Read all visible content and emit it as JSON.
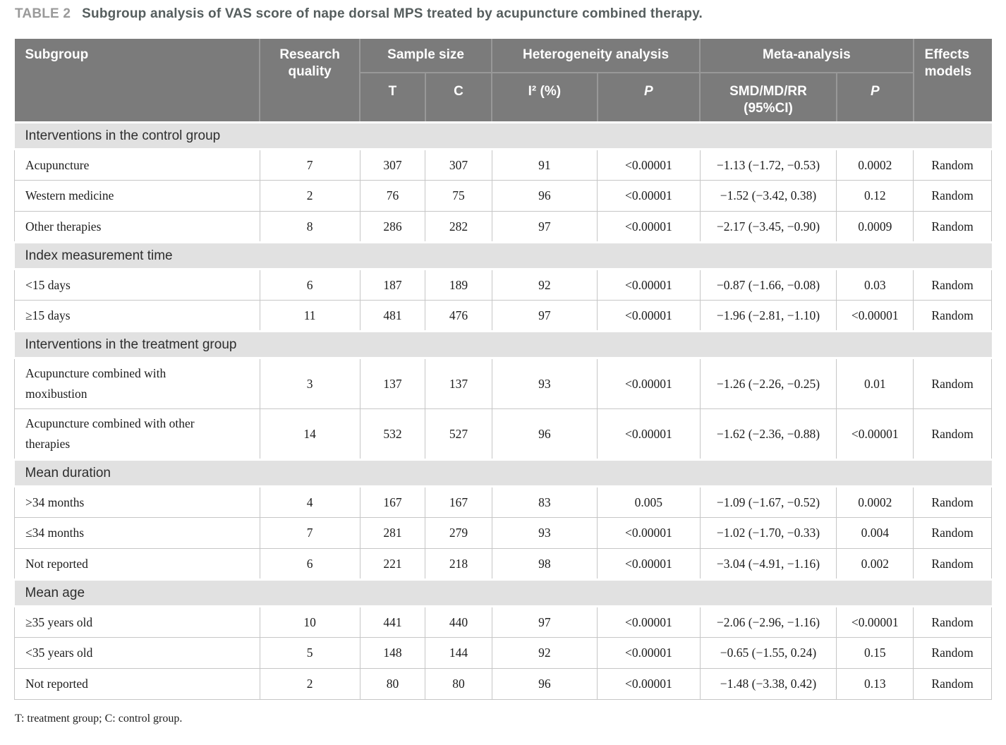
{
  "title": {
    "label": "TABLE 2",
    "caption": "Subgroup analysis of VAS score of nape dorsal MPS treated by acupuncture combined therapy."
  },
  "colors": {
    "header_bg": "#7b7b7b",
    "header_line": "#989898",
    "band_bg": "#e1e1e1",
    "row_line": "#c6c6c6",
    "title_label": "#9a9a9a",
    "title_text": "#565e5e"
  },
  "table": {
    "field_names": [
      "subgroup",
      "research-quality",
      "sample-t",
      "sample-c",
      "i2-percent",
      "heterogeneity-p",
      "smd-md-rr-95ci",
      "meta-p",
      "effects-model"
    ],
    "header": {
      "subgroup": "Subgroup",
      "research_quality": "Research quality",
      "sample_size": "Sample size",
      "t": "T",
      "c": "C",
      "heterogeneity": "Heterogeneity analysis",
      "i2": "I² (%)",
      "p_het": "P",
      "meta": "Meta-analysis",
      "smd": "SMD/MD/RR (95%CI)",
      "p_meta": "P",
      "effects_models": "Effects models"
    },
    "sections": [
      {
        "name": "Interventions in the control group",
        "rows": [
          [
            "Acupuncture",
            "7",
            "307",
            "307",
            "91",
            "<0.00001",
            "−1.13 (−1.72, −0.53)",
            "0.0002",
            "Random"
          ],
          [
            "Western medicine",
            "2",
            "76",
            "75",
            "96",
            "<0.00001",
            "−1.52 (−3.42, 0.38)",
            "0.12",
            "Random"
          ],
          [
            "Other therapies",
            "8",
            "286",
            "282",
            "97",
            "<0.00001",
            "−2.17 (−3.45, −0.90)",
            "0.0009",
            "Random"
          ]
        ]
      },
      {
        "name": "Index measurement time",
        "rows": [
          [
            "<15 days",
            "6",
            "187",
            "189",
            "92",
            "<0.00001",
            "−0.87 (−1.66, −0.08)",
            "0.03",
            "Random"
          ],
          [
            "≥15 days",
            "11",
            "481",
            "476",
            "97",
            "<0.00001",
            "−1.96 (−2.81, −1.10)",
            "<0.00001",
            "Random"
          ]
        ]
      },
      {
        "name": "Interventions in the treatment group",
        "rows": [
          [
            "Acupuncture combined with moxibustion",
            "3",
            "137",
            "137",
            "93",
            "<0.00001",
            "−1.26 (−2.26, −0.25)",
            "0.01",
            "Random"
          ],
          [
            "Acupuncture combined with other therapies",
            "14",
            "532",
            "527",
            "96",
            "<0.00001",
            "−1.62 (−2.36, −0.88)",
            "<0.00001",
            "Random"
          ]
        ]
      },
      {
        "name": "Mean duration",
        "rows": [
          [
            ">34 months",
            "4",
            "167",
            "167",
            "83",
            "0.005",
            "−1.09 (−1.67, −0.52)",
            "0.0002",
            "Random"
          ],
          [
            "≤34 months",
            "7",
            "281",
            "279",
            "93",
            "<0.00001",
            "−1.02 (−1.70, −0.33)",
            "0.004",
            "Random"
          ],
          [
            "Not reported",
            "6",
            "221",
            "218",
            "98",
            "<0.00001",
            "−3.04 (−4.91, −1.16)",
            "0.002",
            "Random"
          ]
        ]
      },
      {
        "name": "Mean age",
        "rows": [
          [
            "≥35 years old",
            "10",
            "441",
            "440",
            "97",
            "<0.00001",
            "−2.06 (−2.96, −1.16)",
            "<0.00001",
            "Random"
          ],
          [
            "<35 years old",
            "5",
            "148",
            "144",
            "92",
            "<0.00001",
            "−0.65 (−1.55, 0.24)",
            "0.15",
            "Random"
          ],
          [
            "Not reported",
            "2",
            "80",
            "80",
            "96",
            "<0.00001",
            "−1.48 (−3.38, 0.42)",
            "0.13",
            "Random"
          ]
        ]
      }
    ]
  },
  "footnote": "T: treatment group; C: control group."
}
